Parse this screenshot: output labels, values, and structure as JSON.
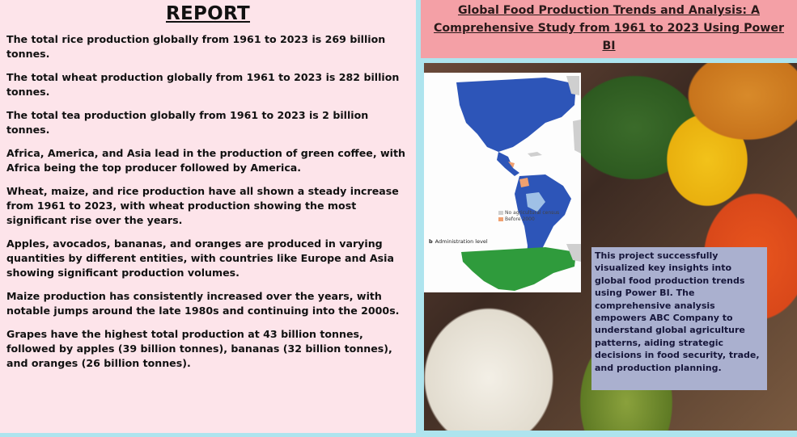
{
  "report": {
    "title": "REPORT",
    "paragraphs": [
      "The total rice production globally from 1961 to 2023 is 269 billion tonnes.",
      "The total wheat production globally from 1961 to 2023 is 282 billion tonnes.",
      "The total tea production globally from 1961 to 2023 is 2 billion tonnes.",
      "Africa, America, and Asia lead in the production of green coffee, with Africa being the top producer followed by America.",
      "Wheat, maize, and rice production have all shown a steady increase from 1961 to 2023, with wheat production showing the most significant rise over the years.",
      "Apples, avocados, bananas, and oranges are produced in varying quantities by different entities, with countries like Europe and Asia showing significant production volumes.",
      "Maize production has consistently increased over the years, with notable jumps around the late 1980s and continuing into the 2000s.",
      "Grapes have the highest total production at 43 billion tonnes, followed by apples (39 billion tonnes), bananas (32 billion tonnes), and oranges (26 billion tonnes)."
    ]
  },
  "banner": {
    "title_line1": "Global Food Production Trends and Analysis: A",
    "title_line2": "Comprehensive Study from 1961 to 2023 Using Power BI"
  },
  "map_inset": {
    "legend": [
      {
        "label": "No agricultural census",
        "color": "#cfcfcf"
      },
      {
        "label": "Before 2000",
        "color": "#f0a070"
      }
    ],
    "panel_b_letter": "b",
    "panel_b_label": "Administration level"
  },
  "summary": {
    "text": "This project successfully visualized key insights into global food production trends using Power BI. The comprehensive analysis empowers ABC Company to understand global agriculture patterns, aiding strategic decisions in food security, trade, and production planning."
  },
  "colors": {
    "report_bg": "#fde4ea",
    "banner_bg": "#f4a0a6",
    "summary_bg": "#aab0cf",
    "page_bg": "#aee4ee"
  }
}
